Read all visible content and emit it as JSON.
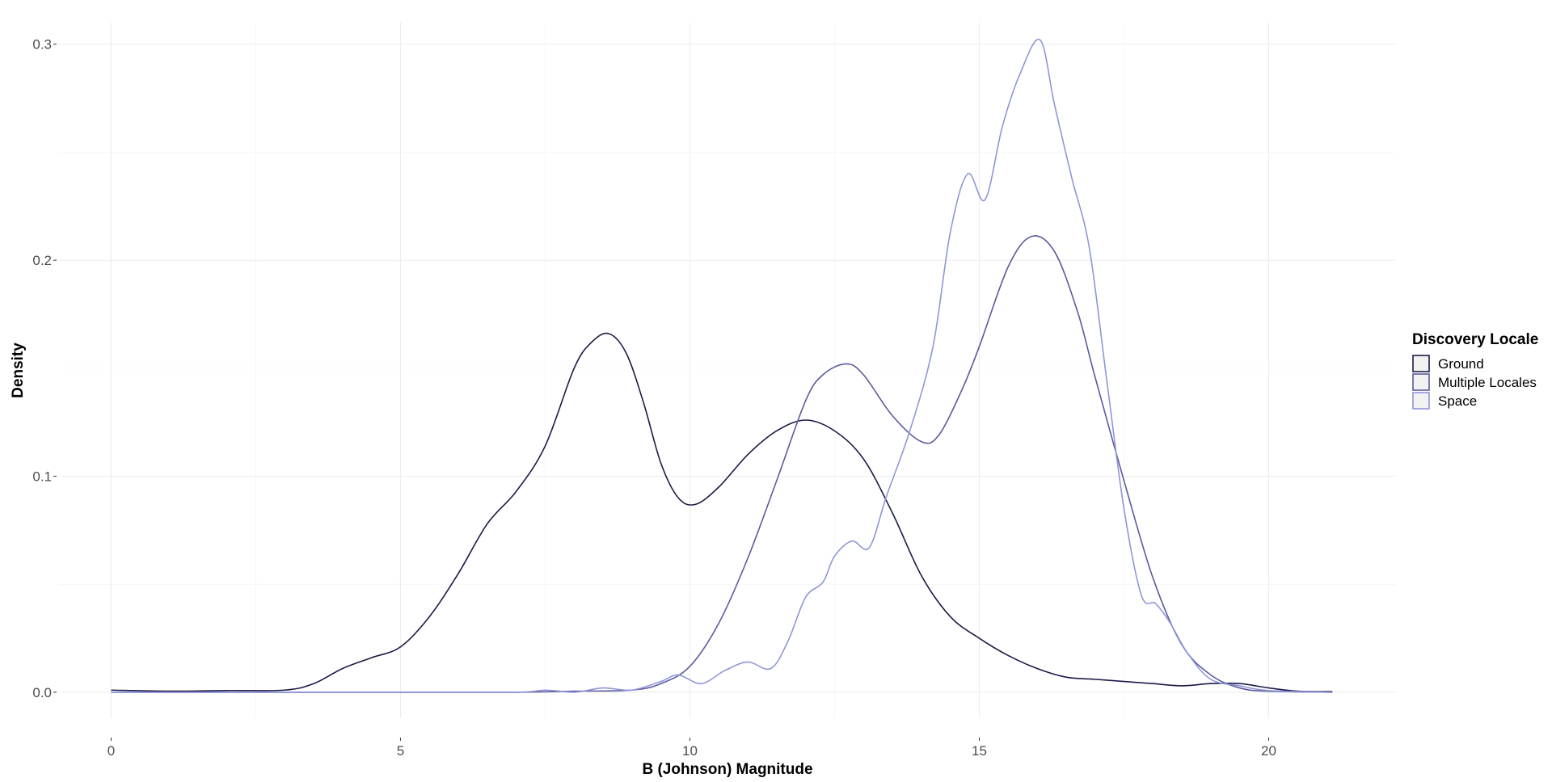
{
  "chart_data": {
    "type": "area",
    "xlabel": "B (Johnson) Magnitude",
    "ylabel": "Density",
    "xlim": [
      -0.9,
      22.2
    ],
    "ylim": [
      -0.012,
      0.31
    ],
    "x_ticks": [
      0,
      5,
      10,
      15,
      20
    ],
    "x_tick_labels": [
      "0",
      "5",
      "10",
      "15",
      "20"
    ],
    "y_ticks": [
      0.0,
      0.1,
      0.2,
      0.3
    ],
    "y_tick_labels": [
      "0.0",
      "0.1",
      "0.2",
      "0.3"
    ],
    "grid": true,
    "legend": {
      "title": "Discovery Locale",
      "position": "right"
    },
    "series": [
      {
        "name": "Ground",
        "color": "#1b1b47",
        "x": [
          0,
          1,
          2,
          3,
          3.5,
          4,
          4.5,
          5,
          5.5,
          6,
          6.5,
          7,
          7.5,
          8,
          8.3,
          8.6,
          8.9,
          9.2,
          9.5,
          9.8,
          10.1,
          10.5,
          11,
          11.5,
          12,
          12.5,
          13,
          13.5,
          14,
          14.5,
          15,
          15.5,
          16,
          16.5,
          17,
          17.5,
          18,
          18.5,
          19,
          19.5,
          20,
          20.5,
          21.1
        ],
        "y": [
          0.001,
          0.0005,
          0.0008,
          0.001,
          0.004,
          0.011,
          0.016,
          0.021,
          0.035,
          0.055,
          0.078,
          0.093,
          0.114,
          0.15,
          0.162,
          0.166,
          0.157,
          0.134,
          0.106,
          0.09,
          0.087,
          0.095,
          0.11,
          0.121,
          0.126,
          0.121,
          0.108,
          0.083,
          0.054,
          0.035,
          0.025,
          0.017,
          0.011,
          0.007,
          0.006,
          0.005,
          0.004,
          0.003,
          0.004,
          0.004,
          0.002,
          0.0005,
          0.0003
        ]
      },
      {
        "name": "Multiple Locales",
        "color": "#5a5a9e",
        "x": [
          0,
          5,
          7,
          8,
          9,
          9.5,
          10,
          10.5,
          11,
          11.5,
          12,
          12.3,
          12.7,
          13,
          13.5,
          14,
          14.3,
          14.7,
          15,
          15.5,
          15.9,
          16.3,
          16.7,
          17,
          17.5,
          18,
          18.5,
          19,
          19.5,
          20,
          21.1
        ],
        "y": [
          0,
          0,
          0,
          0.0005,
          0.001,
          0.004,
          0.012,
          0.032,
          0.062,
          0.098,
          0.135,
          0.147,
          0.152,
          0.147,
          0.128,
          0.116,
          0.119,
          0.14,
          0.16,
          0.197,
          0.211,
          0.204,
          0.176,
          0.146,
          0.098,
          0.053,
          0.022,
          0.008,
          0.002,
          0.0005,
          0
        ]
      },
      {
        "name": "Space",
        "color": "#8f96d8",
        "x": [
          0,
          5,
          7,
          7.5,
          8,
          8.5,
          9,
          9.5,
          9.8,
          10.2,
          10.6,
          11,
          11.4,
          11.7,
          12,
          12.3,
          12.5,
          12.8,
          13.1,
          13.4,
          13.8,
          14.2,
          14.5,
          14.8,
          15.1,
          15.4,
          15.7,
          16.05,
          16.3,
          16.6,
          16.9,
          17.2,
          17.5,
          17.8,
          18.05,
          18.3,
          18.6,
          19,
          19.5,
          20,
          21.1
        ],
        "y": [
          0,
          0,
          0,
          0.001,
          0,
          0.002,
          0.001,
          0.005,
          0.008,
          0.004,
          0.01,
          0.014,
          0.011,
          0.024,
          0.044,
          0.051,
          0.063,
          0.07,
          0.067,
          0.091,
          0.121,
          0.16,
          0.213,
          0.24,
          0.228,
          0.262,
          0.286,
          0.302,
          0.272,
          0.238,
          0.206,
          0.145,
          0.085,
          0.045,
          0.041,
          0.032,
          0.018,
          0.006,
          0.003,
          0.0008,
          0
        ]
      }
    ]
  }
}
